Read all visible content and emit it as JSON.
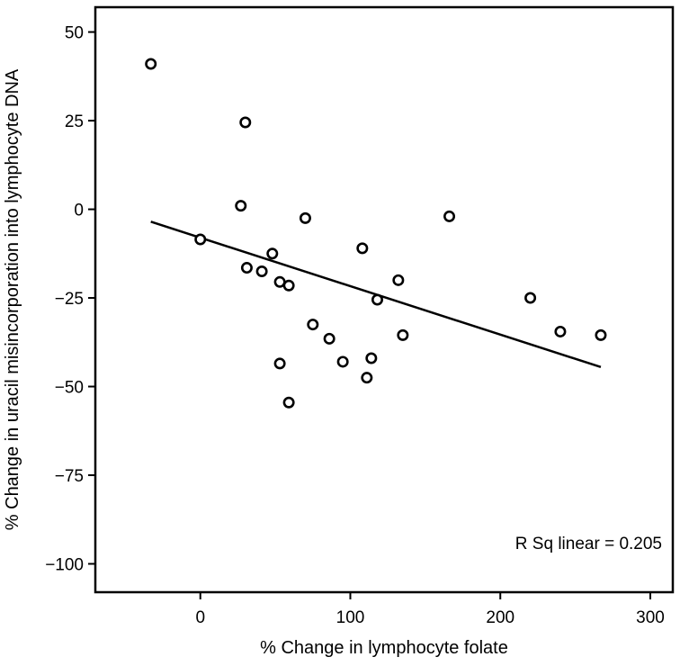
{
  "chart_data": {
    "type": "scatter",
    "title": "",
    "xlabel": "% Change in lymphocyte folate",
    "ylabel": "% Change in uracil misincorporation into lymphocyte DNA",
    "xlim": [
      -70,
      315
    ],
    "ylim": [
      -108,
      57
    ],
    "xticks": [
      0,
      100,
      200,
      300
    ],
    "yticks": [
      50,
      25,
      0,
      -25,
      -50,
      -75,
      -100
    ],
    "xtick_labels": [
      "0",
      "100",
      "200",
      "300"
    ],
    "ytick_labels": [
      "50",
      "25",
      "0",
      "−25",
      "−50",
      "−75",
      "−100"
    ],
    "grid": false,
    "annotation": "R Sq linear = 0.205",
    "fit_line": {
      "x": [
        -33,
        267
      ],
      "y": [
        -3.5,
        -44.5
      ]
    },
    "points": [
      {
        "x": -33,
        "y": 41
      },
      {
        "x": 30,
        "y": 24.5
      },
      {
        "x": 27,
        "y": 1
      },
      {
        "x": 0,
        "y": -8.5
      },
      {
        "x": 70,
        "y": -2.5
      },
      {
        "x": 166,
        "y": -2
      },
      {
        "x": 48,
        "y": -12.5
      },
      {
        "x": 31,
        "y": -16.5
      },
      {
        "x": 41,
        "y": -17.5
      },
      {
        "x": 108,
        "y": -11
      },
      {
        "x": 53,
        "y": -20.5
      },
      {
        "x": 59,
        "y": -21.5
      },
      {
        "x": 132,
        "y": -20
      },
      {
        "x": 118,
        "y": -25.5
      },
      {
        "x": 220,
        "y": -25
      },
      {
        "x": 75,
        "y": -32.5
      },
      {
        "x": 86,
        "y": -36.5
      },
      {
        "x": 135,
        "y": -35.5
      },
      {
        "x": 240,
        "y": -34.5
      },
      {
        "x": 267,
        "y": -35.5
      },
      {
        "x": 53,
        "y": -43.5
      },
      {
        "x": 95,
        "y": -43
      },
      {
        "x": 114,
        "y": -42
      },
      {
        "x": 111,
        "y": -47.5
      },
      {
        "x": 59,
        "y": -54.5
      }
    ]
  }
}
